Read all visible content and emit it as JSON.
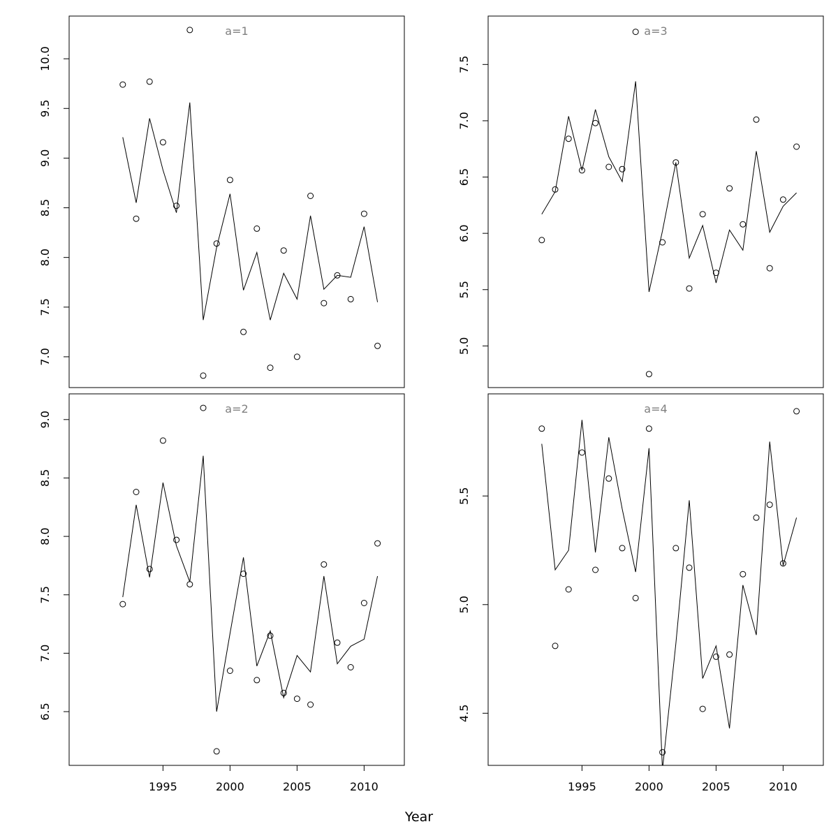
{
  "chart_data": {
    "xlabel": "Year",
    "panels": [
      {
        "title": "a=1",
        "type": "scatter+line",
        "xlim": [
          1988,
          2013
        ],
        "ylim": [
          6.69,
          10.43
        ],
        "yticks": [
          "7.0",
          "7.5",
          "8.0",
          "8.5",
          "9.0",
          "9.5",
          "10.0"
        ],
        "x": [
          1992,
          1993,
          1994,
          1995,
          1996,
          1997,
          1998,
          1999,
          2000,
          2001,
          2002,
          2003,
          2004,
          2005,
          2006,
          2007,
          2008,
          2009,
          2010,
          2011
        ],
        "observed": [
          9.74,
          8.39,
          9.77,
          9.16,
          8.52,
          10.29,
          6.81,
          8.14,
          8.78,
          7.25,
          8.29,
          6.89,
          8.07,
          7.0,
          8.62,
          7.54,
          7.82,
          7.58,
          8.44,
          7.11
        ],
        "fitted": [
          9.21,
          8.55,
          9.4,
          8.88,
          8.45,
          9.56,
          7.37,
          8.1,
          8.64,
          7.67,
          8.05,
          7.37,
          7.84,
          7.58,
          8.42,
          7.68,
          7.82,
          7.8,
          8.31,
          7.55
        ]
      },
      {
        "title": "a=3",
        "type": "scatter+line",
        "xlim": [
          1988,
          2013
        ],
        "ylim": [
          4.63,
          7.93
        ],
        "yticks": [
          "5.0",
          "5.5",
          "6.0",
          "6.5",
          "7.0",
          "7.5"
        ],
        "x": [
          1992,
          1993,
          1994,
          1995,
          1996,
          1997,
          1998,
          1999,
          2000,
          2001,
          2002,
          2003,
          2004,
          2005,
          2006,
          2007,
          2008,
          2009,
          2010,
          2011
        ],
        "observed": [
          5.94,
          6.39,
          6.84,
          6.56,
          6.98,
          6.59,
          6.57,
          7.79,
          4.75,
          5.92,
          6.63,
          5.51,
          6.17,
          5.65,
          6.4,
          6.08,
          7.01,
          5.69,
          6.3,
          6.77
        ],
        "fitted": [
          6.17,
          6.37,
          7.04,
          6.56,
          7.1,
          6.68,
          6.46,
          7.35,
          5.48,
          6.02,
          6.63,
          5.78,
          6.07,
          5.56,
          6.03,
          5.85,
          6.73,
          6.01,
          6.24,
          6.36
        ]
      },
      {
        "title": "a=2",
        "type": "scatter+line",
        "xlim": [
          1988,
          2013
        ],
        "ylim": [
          6.04,
          9.22
        ],
        "yticks": [
          "6.5",
          "7.0",
          "7.5",
          "8.0",
          "8.5",
          "9.0"
        ],
        "x": [
          1992,
          1993,
          1994,
          1995,
          1996,
          1997,
          1998,
          1999,
          2000,
          2001,
          2002,
          2003,
          2004,
          2005,
          2006,
          2007,
          2008,
          2009,
          2010,
          2011
        ],
        "observed": [
          7.42,
          8.38,
          7.72,
          8.82,
          7.97,
          7.59,
          9.1,
          6.16,
          6.85,
          7.68,
          6.77,
          7.15,
          6.66,
          6.61,
          6.56,
          7.76,
          7.09,
          6.88,
          7.43,
          7.94
        ],
        "fitted": [
          7.48,
          8.27,
          7.65,
          8.46,
          7.92,
          7.61,
          8.69,
          6.5,
          7.17,
          7.82,
          6.89,
          7.19,
          6.62,
          6.98,
          6.84,
          7.66,
          6.91,
          7.06,
          7.12,
          7.66
        ]
      },
      {
        "title": "a=4",
        "type": "scatter+line",
        "xlim": [
          1988,
          2013
        ],
        "ylim": [
          4.26,
          5.97
        ],
        "yticks": [
          "4.5",
          "5.0",
          "5.5"
        ],
        "x": [
          1992,
          1993,
          1994,
          1995,
          1996,
          1997,
          1998,
          1999,
          2000,
          2001,
          2002,
          2003,
          2004,
          2005,
          2006,
          2007,
          2008,
          2009,
          2010,
          2011
        ],
        "observed": [
          5.81,
          4.81,
          5.07,
          5.7,
          5.16,
          5.58,
          5.26,
          5.03,
          5.81,
          4.32,
          5.26,
          5.17,
          4.52,
          4.76,
          4.77,
          5.14,
          5.4,
          5.46,
          5.19,
          5.89
        ],
        "fitted": [
          5.74,
          5.16,
          5.25,
          5.85,
          5.24,
          5.77,
          5.44,
          5.15,
          5.72,
          4.24,
          4.82,
          5.48,
          4.66,
          4.81,
          4.43,
          5.09,
          4.86,
          5.75,
          5.18,
          5.4
        ]
      }
    ],
    "xticks": [
      "1995",
      "2000",
      "2005",
      "2010"
    ]
  }
}
